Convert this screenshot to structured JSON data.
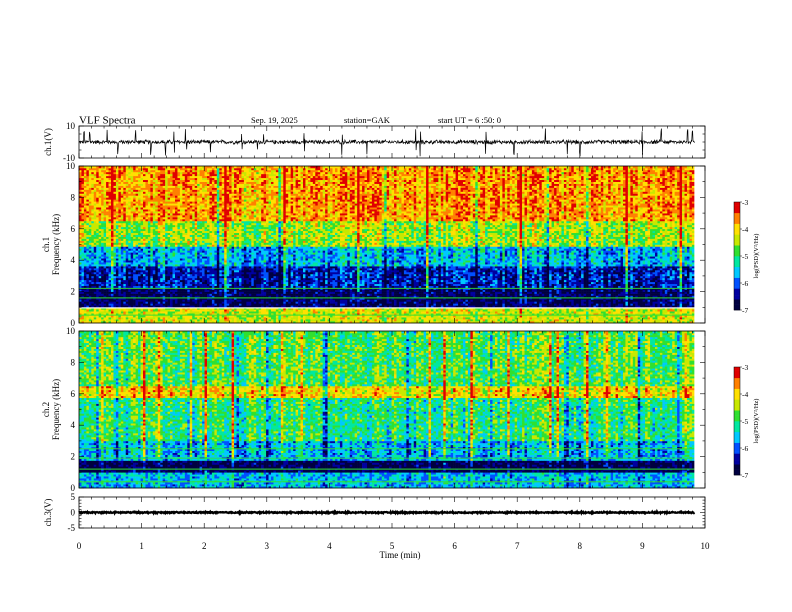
{
  "header": {
    "title": "VLF Spectra",
    "date": "Sep. 19, 2025",
    "station": "station=GAK",
    "start_ut": "start UT = 6 :50: 0"
  },
  "colors": {
    "waveform": "#000000",
    "frame": "#000000",
    "spectrogram_gap": "#ffffff",
    "colormap": [
      "#000040",
      "#0000a0",
      "#0050ff",
      "#00c8ff",
      "#00e8a0",
      "#30e030",
      "#c8e800",
      "#ffe000",
      "#ff8000",
      "#e00000",
      "#ffe0e0"
    ]
  },
  "chart_data": [
    {
      "type": "line",
      "panel": "ch1-waveform",
      "ylabel": "ch.1(V)",
      "ylim": [
        -10,
        10
      ],
      "yticks": [
        "10",
        "-10"
      ],
      "x_units": "min",
      "xlim": [
        0,
        10
      ],
      "data_end": 9.83,
      "baseline": 0,
      "noise_amplitude": 1.5,
      "spike_times": [
        0.08,
        0.17,
        0.45,
        0.62,
        0.9,
        1.15,
        1.38,
        1.52,
        1.7,
        1.72,
        2.1,
        2.6,
        2.85,
        2.95,
        3.6,
        4.2,
        4.6,
        5.38,
        5.45,
        6.5,
        6.95,
        7.45,
        7.8,
        8.0,
        9.0,
        9.3,
        9.72,
        9.8
      ],
      "spike_peak": 9.0
    },
    {
      "type": "heatmap",
      "panel": "ch1-spectrogram",
      "ylabel": "ch.1\nFrequency (kHz)",
      "ylabel_lines": [
        "ch.1",
        "Frequency (kHz)"
      ],
      "ylim": [
        0,
        10
      ],
      "yticks": [
        "0",
        "2",
        "4",
        "6",
        "8",
        "10"
      ],
      "xlim": [
        0,
        10
      ],
      "data_end": 9.83,
      "gap_khz": [
        0.95,
        1.0
      ],
      "colorbar": {
        "label": "log(PSD)(V²/Hz)",
        "range": [
          -7,
          -3
        ],
        "ticks": [
          "-3",
          "-4",
          "-5",
          "-6",
          "-7"
        ]
      },
      "bands": [
        {
          "f_from": 0.0,
          "f_to": 0.95,
          "log_psd": -4.3
        },
        {
          "f_from": 1.0,
          "f_to": 2.2,
          "log_psd": -6.7
        },
        {
          "f_from": 2.2,
          "f_to": 3.6,
          "log_psd": -6.3
        },
        {
          "f_from": 3.6,
          "f_to": 4.9,
          "log_psd": -5.6
        },
        {
          "f_from": 4.9,
          "f_to": 6.5,
          "log_psd": -4.5
        },
        {
          "f_from": 6.5,
          "f_to": 10.0,
          "log_psd": -3.7
        }
      ],
      "tone_lines_khz": [
        0.5,
        1.6,
        2.2
      ]
    },
    {
      "type": "heatmap",
      "panel": "ch2-spectrogram",
      "ylabel": "ch.2\nFrequency (kHz)",
      "ylabel_lines": [
        "ch.2",
        "Frequency (kHz)"
      ],
      "ylim": [
        0,
        10
      ],
      "yticks": [
        "0",
        "2",
        "4",
        "6",
        "8",
        "10"
      ],
      "xlim": [
        0,
        10
      ],
      "data_end": 9.83,
      "colorbar": {
        "label": "log(PSD)(V²/Hz)",
        "range": [
          -7,
          -3
        ],
        "ticks": [
          "-3",
          "-4",
          "-5",
          "-6",
          "-7"
        ]
      },
      "bands": [
        {
          "f_from": 0.0,
          "f_to": 1.0,
          "log_psd": -5.6
        },
        {
          "f_from": 1.0,
          "f_to": 1.8,
          "log_psd": -6.8
        },
        {
          "f_from": 1.8,
          "f_to": 3.0,
          "log_psd": -5.6
        },
        {
          "f_from": 3.0,
          "f_to": 5.8,
          "log_psd": -5.0
        },
        {
          "f_from": 5.8,
          "f_to": 6.5,
          "log_psd": -4.0
        },
        {
          "f_from": 6.5,
          "f_to": 10.0,
          "log_psd": -4.8
        }
      ],
      "tone_lines_khz": [
        0.4,
        1.2,
        1.9,
        2.5
      ]
    },
    {
      "type": "line",
      "panel": "ch3-waveform",
      "ylabel": "ch.3(V)",
      "ylim": [
        -5,
        5
      ],
      "yticks": [
        "5",
        "0",
        "-5"
      ],
      "xlim": [
        0,
        10
      ],
      "data_end": 9.83,
      "baseline": 0,
      "noise_amplitude": 0.25,
      "xlabel": "Time (min)",
      "xticks": [
        "0",
        "1",
        "2",
        "3",
        "4",
        "5",
        "6",
        "7",
        "8",
        "9",
        "10"
      ]
    }
  ]
}
